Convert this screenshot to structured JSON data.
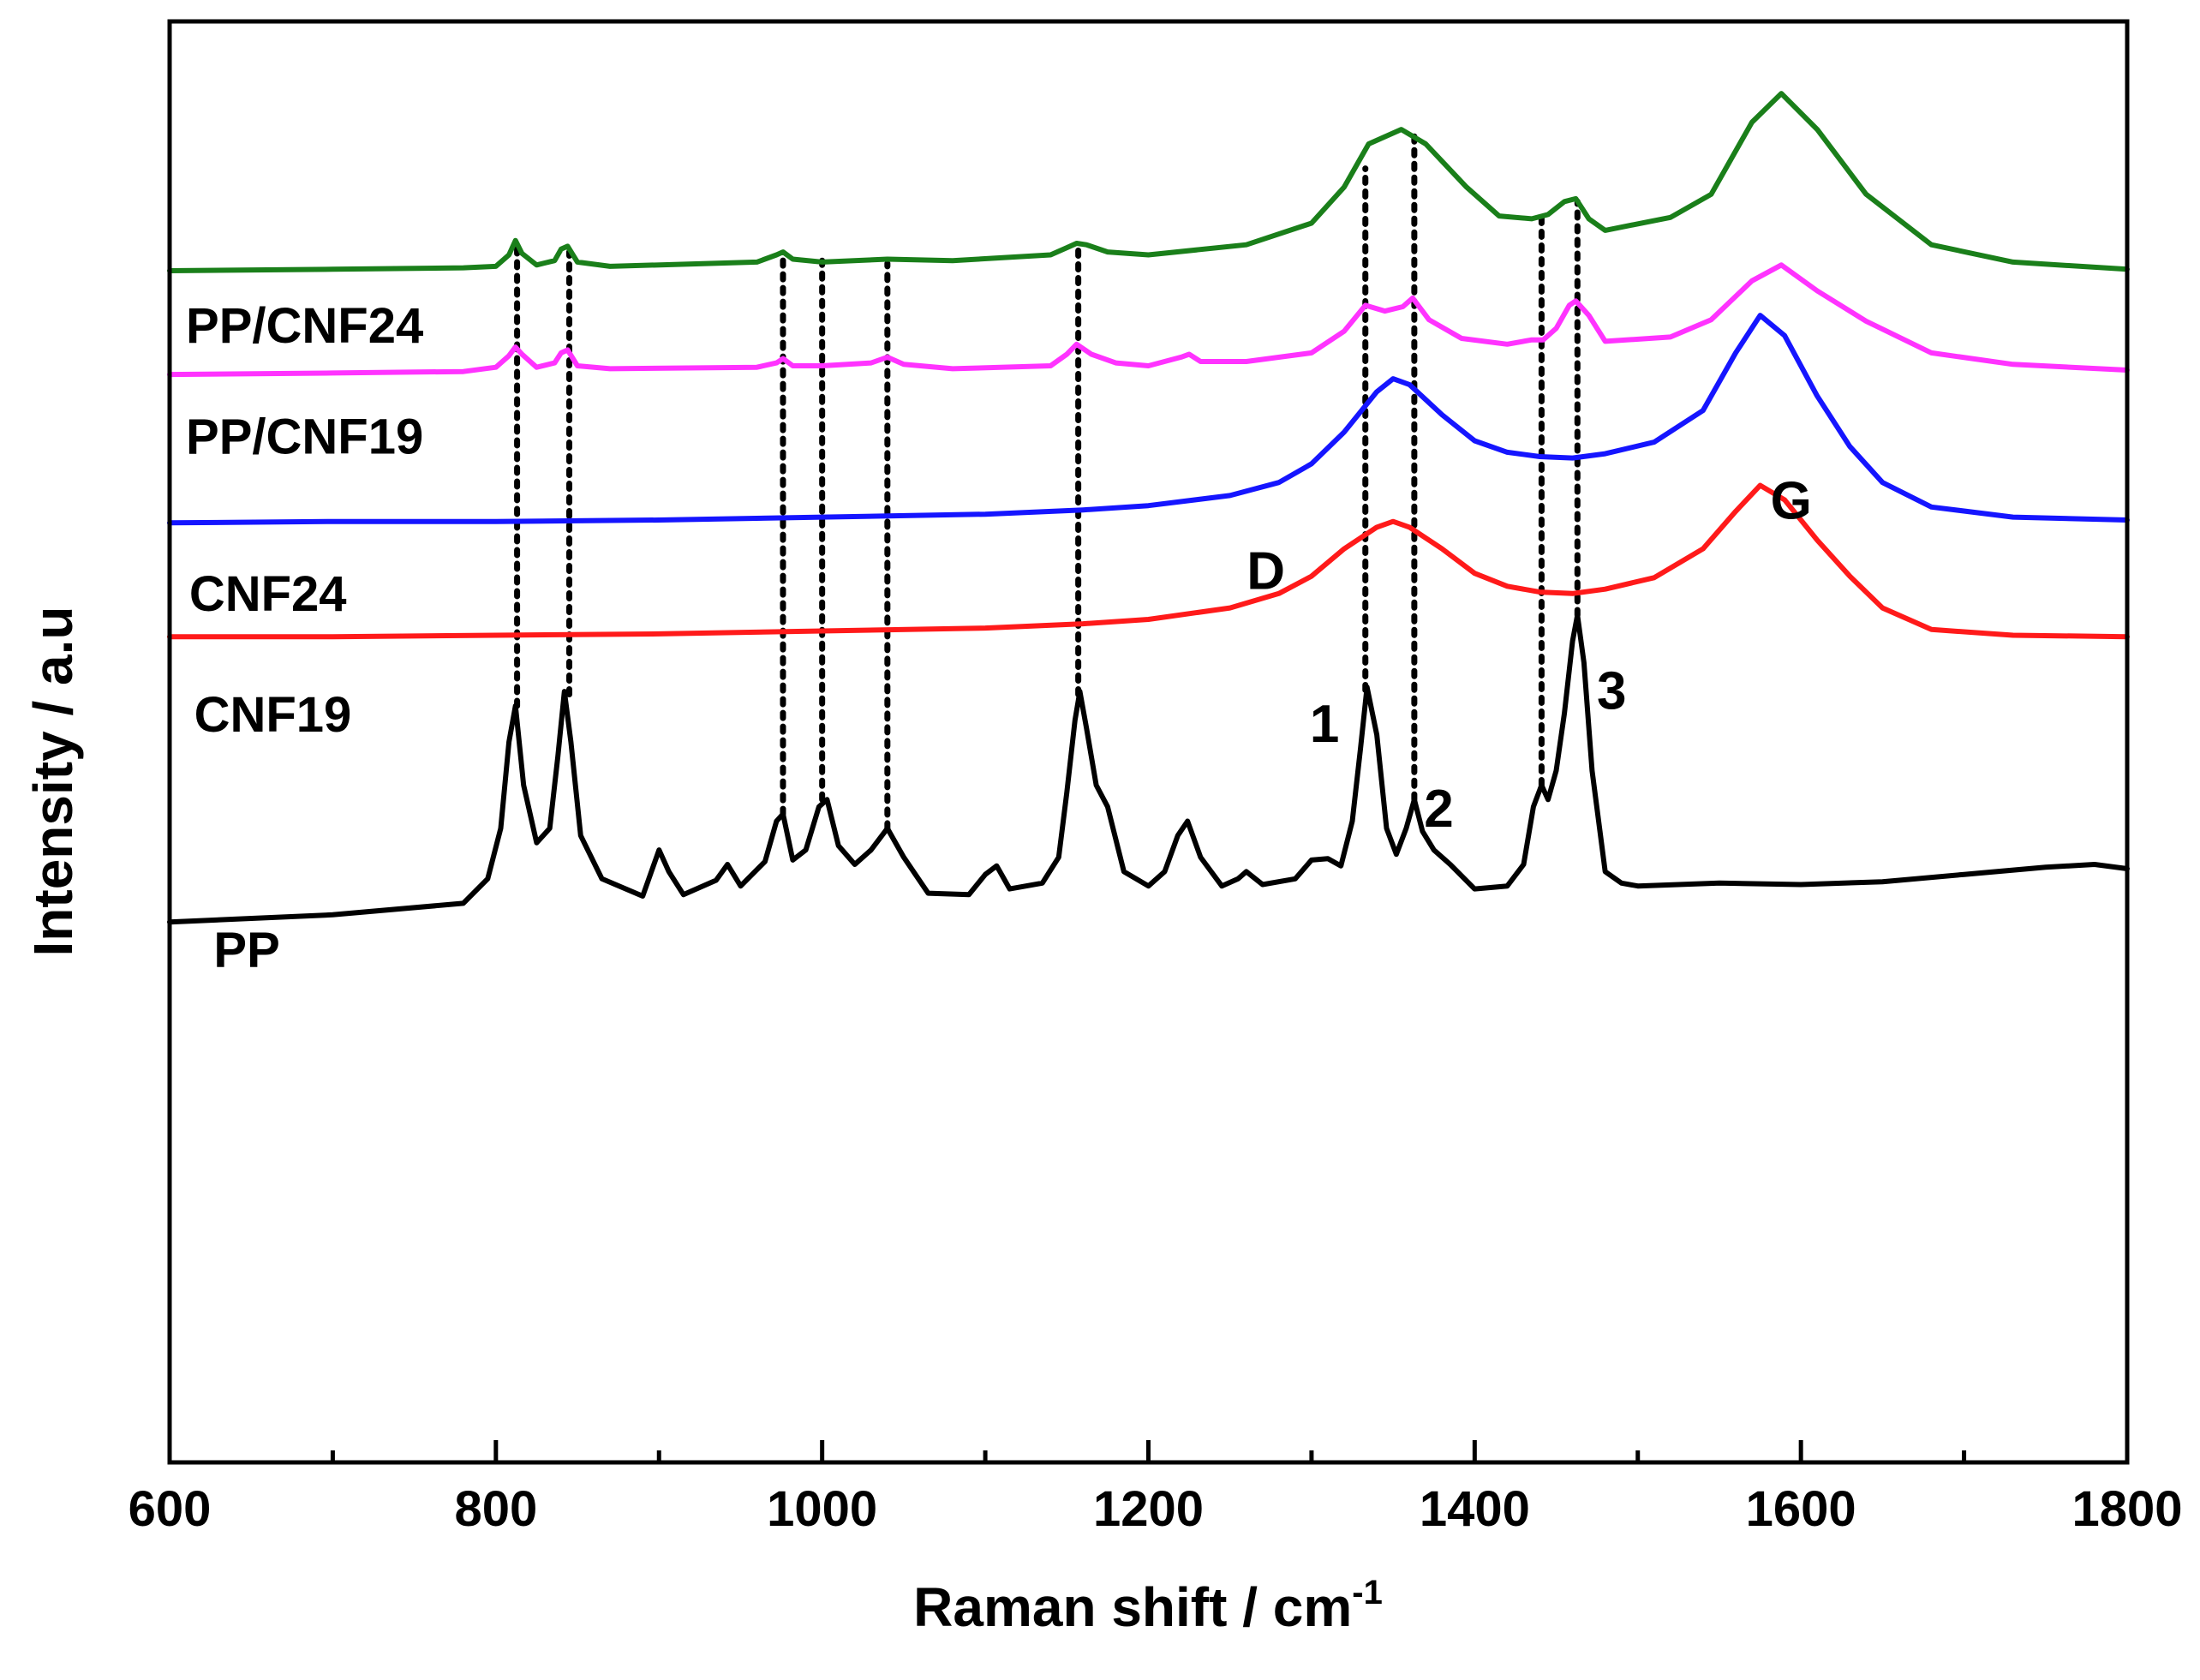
{
  "chart_data": {
    "type": "line",
    "title": "",
    "xlabel": "Raman shift / cm",
    "xlabel_superscript": "-1",
    "ylabel": "Intensity / a.u",
    "xlim": [
      600,
      1800
    ],
    "ylim": [
      0,
      100
    ],
    "xticks": [
      600,
      800,
      1000,
      1200,
      1400,
      1600,
      1800
    ],
    "xtick_labels": [
      "600",
      "800",
      "1000",
      "1200",
      "1400",
      "1600",
      "1800"
    ],
    "yticks_shown": false,
    "series": [
      {
        "name": "PP/CNF24",
        "color": "#1a7f1a",
        "label_x": 610,
        "label_y": 77.7,
        "x": [
          600,
          700,
          780,
          800,
          808,
          812,
          816,
          825,
          836,
          840,
          844,
          850,
          870,
          960,
          972,
          976,
          982,
          1000,
          1040,
          1080,
          1140,
          1150,
          1156,
          1162,
          1175,
          1200,
          1260,
          1300,
          1320,
          1335,
          1355,
          1370,
          1395,
          1415,
          1435,
          1445,
          1455,
          1462,
          1470,
          1480,
          1520,
          1545,
          1570,
          1588,
          1610,
          1640,
          1680,
          1730,
          1800
        ],
        "y": [
          82.7,
          82.8,
          82.9,
          83.0,
          83.8,
          84.8,
          83.9,
          83.1,
          83.4,
          84.2,
          84.4,
          83.3,
          83.0,
          83.3,
          83.8,
          84.0,
          83.5,
          83.3,
          83.5,
          83.4,
          83.8,
          84.3,
          84.6,
          84.5,
          84.0,
          83.8,
          84.5,
          86.0,
          88.5,
          91.5,
          92.5,
          91.5,
          88.5,
          86.5,
          86.3,
          86.6,
          87.5,
          87.7,
          86.3,
          85.5,
          86.4,
          88.0,
          93.0,
          95.0,
          92.5,
          88.0,
          84.5,
          83.3,
          82.8
        ]
      },
      {
        "name": "PP/CNF19",
        "color": "#ff33ff",
        "label_x": 610,
        "label_y": 70.0,
        "x": [
          600,
          700,
          780,
          800,
          808,
          812,
          816,
          825,
          836,
          840,
          844,
          850,
          870,
          960,
          972,
          976,
          982,
          1000,
          1030,
          1040,
          1050,
          1080,
          1140,
          1150,
          1156,
          1165,
          1180,
          1200,
          1220,
          1225,
          1232,
          1260,
          1300,
          1320,
          1333,
          1345,
          1356,
          1362,
          1372,
          1392,
          1420,
          1435,
          1442,
          1450,
          1458,
          1462,
          1470,
          1480,
          1520,
          1545,
          1570,
          1588,
          1610,
          1640,
          1680,
          1730,
          1800
        ],
        "y": [
          75.5,
          75.6,
          75.7,
          76.0,
          76.8,
          77.4,
          76.9,
          76.0,
          76.3,
          77.0,
          77.2,
          76.1,
          75.9,
          76.0,
          76.3,
          76.6,
          76.1,
          76.1,
          76.3,
          76.7,
          76.2,
          75.9,
          76.1,
          76.9,
          77.6,
          76.9,
          76.3,
          76.1,
          76.7,
          76.9,
          76.4,
          76.4,
          77.0,
          78.5,
          80.3,
          79.9,
          80.2,
          80.8,
          79.3,
          78.0,
          77.6,
          77.9,
          77.9,
          78.7,
          80.3,
          80.6,
          79.6,
          77.8,
          78.1,
          79.3,
          82.0,
          83.1,
          81.3,
          79.2,
          77.0,
          76.2,
          75.8
        ]
      },
      {
        "name": "CNF24",
        "color": "#1515ff",
        "label_x": 612,
        "label_y": 59.1,
        "x": [
          600,
          700,
          800,
          900,
          1000,
          1100,
          1160,
          1200,
          1250,
          1280,
          1300,
          1320,
          1340,
          1350,
          1360,
          1380,
          1400,
          1420,
          1440,
          1460,
          1480,
          1510,
          1540,
          1560,
          1575,
          1590,
          1610,
          1630,
          1650,
          1680,
          1730,
          1800
        ],
        "y": [
          65.2,
          65.3,
          65.3,
          65.4,
          65.6,
          65.8,
          66.1,
          66.4,
          67.1,
          68.0,
          69.3,
          71.5,
          74.3,
          75.2,
          74.8,
          72.7,
          70.9,
          70.1,
          69.8,
          69.7,
          70.0,
          70.8,
          73.0,
          77.0,
          79.6,
          78.2,
          74.0,
          70.5,
          68.0,
          66.3,
          65.6,
          65.4
        ]
      },
      {
        "name": "CNF19",
        "color": "#ff1a1a",
        "label_x": 615,
        "label_y": 50.7,
        "x": [
          600,
          700,
          800,
          900,
          1000,
          1100,
          1160,
          1200,
          1250,
          1280,
          1300,
          1320,
          1340,
          1350,
          1360,
          1380,
          1400,
          1420,
          1440,
          1460,
          1480,
          1510,
          1540,
          1560,
          1575,
          1590,
          1610,
          1630,
          1650,
          1680,
          1730,
          1800
        ],
        "y": [
          57.3,
          57.3,
          57.4,
          57.5,
          57.7,
          57.9,
          58.2,
          58.5,
          59.3,
          60.3,
          61.5,
          63.4,
          64.9,
          65.3,
          64.9,
          63.4,
          61.7,
          60.8,
          60.4,
          60.3,
          60.6,
          61.4,
          63.4,
          66.0,
          67.8,
          66.8,
          64.0,
          61.5,
          59.3,
          57.8,
          57.4,
          57.3
        ]
      },
      {
        "name": "PP",
        "color": "#000000",
        "label_x": 627,
        "label_y": 34.4,
        "x": [
          600,
          700,
          780,
          795,
          803,
          808,
          812,
          817,
          825,
          833,
          838,
          842,
          846,
          852,
          865,
          890,
          900,
          906,
          915,
          935,
          942,
          950,
          965,
          972,
          976,
          982,
          990,
          998,
          1003,
          1010,
          1020,
          1030,
          1040,
          1050,
          1065,
          1090,
          1100,
          1107,
          1115,
          1135,
          1145,
          1150,
          1155,
          1158,
          1162,
          1168,
          1175,
          1185,
          1200,
          1210,
          1218,
          1224,
          1232,
          1245,
          1255,
          1260,
          1270,
          1290,
          1300,
          1310,
          1318,
          1325,
          1330,
          1334,
          1340,
          1346,
          1352,
          1358,
          1363,
          1368,
          1375,
          1385,
          1400,
          1420,
          1430,
          1436,
          1441,
          1445,
          1450,
          1455,
          1460,
          1463,
          1467,
          1472,
          1480,
          1490,
          1500,
          1550,
          1600,
          1650,
          1700,
          1750,
          1780,
          1800
        ],
        "y": [
          37.5,
          38.0,
          38.8,
          40.5,
          44.0,
          50.0,
          52.5,
          47.0,
          43.0,
          44.0,
          49.0,
          53.5,
          50.0,
          43.5,
          40.5,
          39.3,
          42.5,
          41.0,
          39.4,
          40.4,
          41.5,
          40.0,
          41.7,
          44.5,
          45.0,
          41.8,
          42.5,
          45.5,
          46.0,
          42.8,
          41.5,
          42.5,
          44.0,
          42.0,
          39.5,
          39.4,
          40.8,
          41.4,
          39.8,
          40.2,
          42.0,
          46.5,
          51.5,
          53.5,
          51.0,
          47.0,
          45.5,
          41.0,
          40.0,
          41.0,
          43.5,
          44.5,
          42.0,
          40.0,
          40.5,
          41.0,
          40.1,
          40.5,
          41.8,
          41.9,
          41.4,
          44.5,
          49.5,
          53.8,
          50.5,
          44.0,
          42.2,
          44.0,
          46.0,
          43.8,
          42.5,
          41.5,
          39.8,
          40.0,
          41.5,
          45.5,
          47.0,
          46.0,
          48.0,
          52.0,
          57.0,
          58.8,
          55.5,
          48.0,
          41.0,
          40.2,
          40.0,
          40.2,
          40.1,
          40.3,
          40.8,
          41.3,
          41.5,
          41.2
        ]
      }
    ],
    "guide_lines": [
      {
        "x": 813,
        "y_from": 52.5,
        "y_to": 84.4
      },
      {
        "x": 845,
        "y_from": 53.3,
        "y_to": 84.0
      },
      {
        "x": 976,
        "y_from": 45.0,
        "y_to": 83.8
      },
      {
        "x": 1000,
        "y_from": 46.0,
        "y_to": 83.4
      },
      {
        "x": 1040,
        "y_from": 44.0,
        "y_to": 83.2
      },
      {
        "x": 1157,
        "y_from": 53.3,
        "y_to": 84.4
      },
      {
        "x": 1333,
        "y_from": 53.6,
        "y_to": 89.8
      },
      {
        "x": 1363,
        "y_from": 46.0,
        "y_to": 92.4
      },
      {
        "x": 1441,
        "y_from": 47.0,
        "y_to": 86.6
      },
      {
        "x": 1463,
        "y_from": 58.8,
        "y_to": 87.5
      }
    ],
    "annotations": [
      {
        "text": "D",
        "x": 1272,
        "y": 60.6
      },
      {
        "text": "G",
        "x": 1594,
        "y": 65.5
      },
      {
        "text": "1",
        "x": 1308,
        "y": 50.0
      },
      {
        "text": "2",
        "x": 1378,
        "y": 44.1
      },
      {
        "text": "3",
        "x": 1484,
        "y": 52.3
      }
    ],
    "grid": false,
    "legend": "none"
  }
}
